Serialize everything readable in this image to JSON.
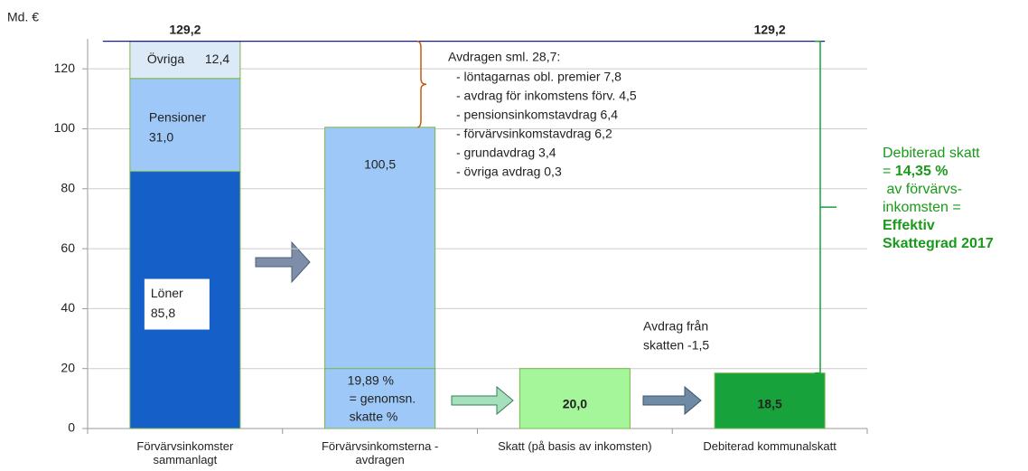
{
  "chart_data": {
    "type": "bar",
    "stacked": true,
    "y_label": "Md. €",
    "categories": [
      "Förvärvsinkomster sammanlagt",
      "Förvärvsinkomsterna - avdragen",
      "Skatt (på basis av inkomsten)",
      "Debiterad kommunalskatt"
    ],
    "series": [
      {
        "name": "Löner",
        "color": "#1560c8",
        "values": [
          85.8,
          null,
          null,
          null
        ],
        "value_labels": [
          "85,8",
          null,
          null,
          null
        ]
      },
      {
        "name": "Pensioner",
        "color": "#9ec8f7",
        "values": [
          31.0,
          null,
          null,
          null
        ],
        "value_labels": [
          "31,0",
          null,
          null,
          null
        ]
      },
      {
        "name": "Övriga",
        "color": "#dce9f7",
        "values": [
          12.4,
          null,
          null,
          null
        ],
        "value_labels": [
          "12,4",
          null,
          null,
          null
        ]
      },
      {
        "color": "#9ec8f7",
        "values": [
          null,
          100.5,
          null,
          null
        ],
        "value_labels": [
          null,
          "100,5",
          null,
          null
        ]
      },
      {
        "color": "#a5f59a",
        "values": [
          null,
          null,
          20.0,
          null
        ],
        "value_labels": [
          null,
          null,
          "20,0",
          null
        ]
      },
      {
        "color": "#17a23c",
        "values": [
          null,
          null,
          null,
          18.5
        ],
        "value_labels": [
          null,
          null,
          null,
          "18,5"
        ]
      }
    ],
    "total": {
      "value": 129.2,
      "label": "129,2"
    },
    "ylim": [
      0,
      130
    ],
    "yticks": [
      0,
      20,
      40,
      60,
      80,
      100,
      120
    ],
    "grid": true,
    "deductions": {
      "title": "Avdragen sml. 28,7:",
      "items": [
        "- löntagarnas obl. premier 7,8",
        "- avdrag för inkomstens förv. 4,5",
        "- pensionsinkomstavdrag 6,4",
        "- förvärvsinkomstavdrag 6,2",
        "- grundavdrag 3,4",
        "- övriga avdrag 0,3"
      ]
    },
    "share_note": [
      "19,89 %",
      "= genomsn.",
      "skatte %"
    ],
    "tax_deduction_note": [
      "Avdrag från",
      "skatten -1,5"
    ],
    "effective_note": [
      [
        {
          "text": "Debiterad skatt",
          "bold": false
        }
      ],
      [
        {
          "text": "= ",
          "bold": false
        },
        {
          "text": "14,35 %",
          "bold": true
        }
      ],
      [
        {
          "text": " av förvärvs-",
          "bold": false
        }
      ],
      [
        {
          "text": "inkomsten =",
          "bold": false
        }
      ],
      [
        {
          "text": "Effektiv",
          "bold": true
        }
      ],
      [
        {
          "text": "Skattegrad 2017",
          "bold": true
        }
      ]
    ]
  }
}
